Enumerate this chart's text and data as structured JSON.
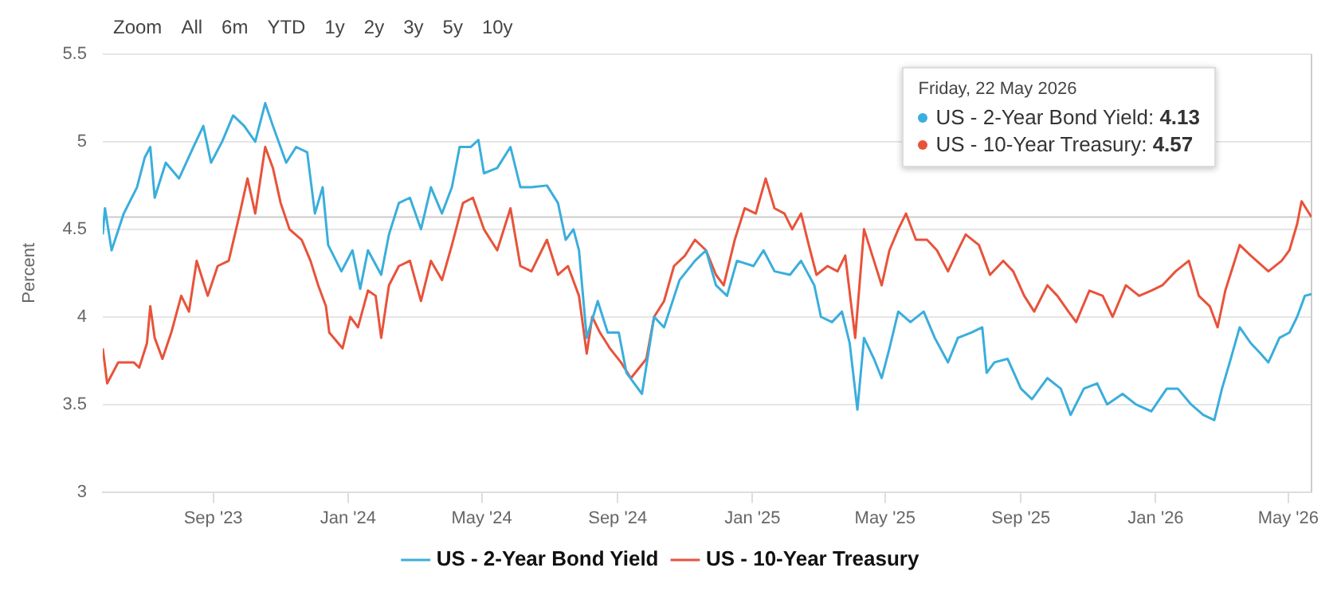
{
  "chart_data": {
    "type": "line",
    "ylabel": "Percent",
    "xlim": [
      "2023-05-24",
      "2026-05-22"
    ],
    "ylim": [
      3,
      5.5
    ],
    "yticks": [
      3,
      3.5,
      4,
      4.5,
      5,
      5.5
    ],
    "xticks": [
      {
        "value": "2023-09-01",
        "label": "Sep '23"
      },
      {
        "value": "2024-01-01",
        "label": "Jan '24"
      },
      {
        "value": "2024-05-01",
        "label": "May '24"
      },
      {
        "value": "2024-09-01",
        "label": "Sep '24"
      },
      {
        "value": "2025-01-01",
        "label": "Jan '25"
      },
      {
        "value": "2025-05-01",
        "label": "May '25"
      },
      {
        "value": "2025-09-01",
        "label": "Sep '25"
      },
      {
        "value": "2026-01-01",
        "label": "Jan '26"
      },
      {
        "value": "2026-05-01",
        "label": "May '26"
      }
    ],
    "grid": "y",
    "legend": "bottom",
    "marker": "none",
    "line_style": "solid",
    "series": [
      {
        "name": "US - 2-Year Bond Yield",
        "color": "#3aaedc",
        "x": [
          "2023-05-24",
          "2023-05-26",
          "2023-06-01",
          "2023-06-12",
          "2023-06-24",
          "2023-07-01",
          "2023-07-06",
          "2023-07-10",
          "2023-07-20",
          "2023-08-01",
          "2023-08-14",
          "2023-08-23",
          "2023-08-30",
          "2023-09-09",
          "2023-09-19",
          "2023-09-29",
          "2023-10-09",
          "2023-10-18",
          "2023-10-25",
          "2023-11-06",
          "2023-11-15",
          "2023-11-25",
          "2023-12-02",
          "2023-12-09",
          "2023-12-14",
          "2023-12-26",
          "2024-01-05",
          "2024-01-12",
          "2024-01-19",
          "2024-01-31",
          "2024-02-07",
          "2024-02-16",
          "2024-02-26",
          "2024-03-07",
          "2024-03-16",
          "2024-03-26",
          "2024-04-04",
          "2024-04-11",
          "2024-04-21",
          "2024-04-28",
          "2024-05-03",
          "2024-05-15",
          "2024-05-27",
          "2024-06-05",
          "2024-06-15",
          "2024-06-29",
          "2024-07-09",
          "2024-07-16",
          "2024-07-23",
          "2024-07-28",
          "2024-08-04",
          "2024-08-14",
          "2024-08-23",
          "2024-09-02",
          "2024-09-09",
          "2024-09-23",
          "2024-10-04",
          "2024-10-13",
          "2024-10-27",
          "2024-11-10",
          "2024-11-20",
          "2024-11-29",
          "2024-12-09",
          "2024-12-18",
          "2025-01-02",
          "2025-01-11",
          "2025-01-21",
          "2025-02-04",
          "2025-02-14",
          "2025-02-26",
          "2025-03-04",
          "2025-03-14",
          "2025-03-23",
          "2025-03-30",
          "2025-04-06",
          "2025-04-12",
          "2025-04-21",
          "2025-04-28",
          "2025-05-05",
          "2025-05-13",
          "2025-05-24",
          "2025-06-05",
          "2025-06-15",
          "2025-06-27",
          "2025-07-06",
          "2025-07-18",
          "2025-07-28",
          "2025-08-01",
          "2025-08-08",
          "2025-08-20",
          "2025-09-01",
          "2025-09-11",
          "2025-09-25",
          "2025-10-07",
          "2025-10-16",
          "2025-10-28",
          "2025-11-09",
          "2025-11-18",
          "2025-12-02",
          "2025-12-14",
          "2025-12-28",
          "2026-01-11",
          "2026-01-21",
          "2026-02-02",
          "2026-02-13",
          "2026-02-23",
          "2026-03-02",
          "2026-03-09",
          "2026-03-18",
          "2026-03-28",
          "2026-04-06",
          "2026-04-13",
          "2026-04-23",
          "2026-05-02",
          "2026-05-09",
          "2026-05-16",
          "2026-05-22"
        ],
        "values": [
          4.47,
          4.62,
          4.38,
          4.59,
          4.74,
          4.91,
          4.97,
          4.68,
          4.88,
          4.79,
          4.97,
          5.09,
          4.88,
          5.0,
          5.15,
          5.09,
          5.0,
          5.22,
          5.09,
          4.88,
          4.97,
          4.94,
          4.59,
          4.74,
          4.41,
          4.26,
          4.38,
          4.16,
          4.38,
          4.24,
          4.47,
          4.65,
          4.68,
          4.5,
          4.74,
          4.59,
          4.74,
          4.97,
          4.97,
          5.01,
          4.82,
          4.85,
          4.97,
          4.74,
          4.74,
          4.75,
          4.65,
          4.44,
          4.5,
          4.38,
          3.88,
          4.09,
          3.91,
          3.91,
          3.68,
          3.56,
          4.0,
          3.94,
          4.21,
          4.32,
          4.38,
          4.18,
          4.12,
          4.32,
          4.29,
          4.38,
          4.26,
          4.24,
          4.32,
          4.18,
          4.0,
          3.97,
          4.03,
          3.85,
          3.47,
          3.88,
          3.76,
          3.65,
          3.82,
          4.03,
          3.97,
          4.03,
          3.88,
          3.74,
          3.88,
          3.91,
          3.94,
          3.68,
          3.74,
          3.76,
          3.59,
          3.53,
          3.65,
          3.59,
          3.44,
          3.59,
          3.62,
          3.5,
          3.56,
          3.5,
          3.46,
          3.59,
          3.59,
          3.5,
          3.44,
          3.41,
          3.59,
          3.74,
          3.94,
          3.85,
          3.79,
          3.74,
          3.88,
          3.91,
          4.0,
          4.12,
          4.13
        ]
      },
      {
        "name": "US - 10-Year Treasury",
        "color": "#e8533a",
        "x": [
          "2023-05-24",
          "2023-05-28",
          "2023-06-07",
          "2023-06-21",
          "2023-06-26",
          "2023-07-03",
          "2023-07-06",
          "2023-07-10",
          "2023-07-17",
          "2023-07-25",
          "2023-08-03",
          "2023-08-10",
          "2023-08-17",
          "2023-08-27",
          "2023-09-05",
          "2023-09-15",
          "2023-09-25",
          "2023-10-02",
          "2023-10-09",
          "2023-10-18",
          "2023-10-25",
          "2023-11-01",
          "2023-11-09",
          "2023-11-20",
          "2023-11-28",
          "2023-12-05",
          "2023-12-12",
          "2023-12-15",
          "2023-12-27",
          "2024-01-03",
          "2024-01-10",
          "2024-01-19",
          "2024-01-26",
          "2024-01-31",
          "2024-02-07",
          "2024-02-16",
          "2024-02-26",
          "2024-03-07",
          "2024-03-16",
          "2024-03-26",
          "2024-04-04",
          "2024-04-14",
          "2024-04-23",
          "2024-05-03",
          "2024-05-15",
          "2024-05-27",
          "2024-06-05",
          "2024-06-15",
          "2024-06-29",
          "2024-07-09",
          "2024-07-18",
          "2024-07-28",
          "2024-08-04",
          "2024-08-09",
          "2024-08-16",
          "2024-08-25",
          "2024-09-04",
          "2024-09-13",
          "2024-09-27",
          "2024-10-04",
          "2024-10-13",
          "2024-10-22",
          "2024-11-01",
          "2024-11-10",
          "2024-11-20",
          "2024-11-29",
          "2024-12-06",
          "2024-12-16",
          "2024-12-25",
          "2025-01-04",
          "2025-01-13",
          "2025-01-21",
          "2025-01-30",
          "2025-02-06",
          "2025-02-14",
          "2025-02-21",
          "2025-02-28",
          "2025-03-10",
          "2025-03-19",
          "2025-03-26",
          "2025-04-04",
          "2025-04-12",
          "2025-04-21",
          "2025-04-28",
          "2025-05-05",
          "2025-05-13",
          "2025-05-20",
          "2025-05-29",
          "2025-06-08",
          "2025-06-17",
          "2025-06-27",
          "2025-07-06",
          "2025-07-13",
          "2025-07-25",
          "2025-08-04",
          "2025-08-16",
          "2025-08-25",
          "2025-09-04",
          "2025-09-13",
          "2025-09-25",
          "2025-10-04",
          "2025-10-14",
          "2025-10-21",
          "2025-11-02",
          "2025-11-14",
          "2025-11-23",
          "2025-12-05",
          "2025-12-17",
          "2025-12-28",
          "2026-01-07",
          "2026-01-19",
          "2026-01-31",
          "2026-02-09",
          "2026-02-19",
          "2026-02-26",
          "2026-03-05",
          "2026-03-12",
          "2026-03-18",
          "2026-03-28",
          "2026-04-13",
          "2026-04-25",
          "2026-05-02",
          "2026-05-09",
          "2026-05-13",
          "2026-05-22"
        ],
        "values": [
          3.82,
          3.62,
          3.74,
          3.74,
          3.71,
          3.85,
          4.06,
          3.88,
          3.76,
          3.91,
          4.12,
          4.03,
          4.32,
          4.12,
          4.29,
          4.32,
          4.59,
          4.79,
          4.59,
          4.97,
          4.85,
          4.65,
          4.5,
          4.44,
          4.32,
          4.18,
          4.06,
          3.91,
          3.82,
          4.0,
          3.94,
          4.15,
          4.12,
          3.88,
          4.18,
          4.29,
          4.32,
          4.09,
          4.32,
          4.21,
          4.41,
          4.65,
          4.68,
          4.5,
          4.38,
          4.62,
          4.29,
          4.26,
          4.44,
          4.24,
          4.29,
          4.12,
          3.79,
          4.0,
          3.91,
          3.82,
          3.74,
          3.65,
          3.76,
          4.0,
          4.09,
          4.29,
          4.35,
          4.44,
          4.38,
          4.24,
          4.18,
          4.44,
          4.62,
          4.59,
          4.79,
          4.62,
          4.59,
          4.5,
          4.59,
          4.41,
          4.24,
          4.29,
          4.26,
          4.35,
          3.88,
          4.5,
          4.32,
          4.18,
          4.38,
          4.5,
          4.59,
          4.44,
          4.44,
          4.38,
          4.26,
          4.38,
          4.47,
          4.41,
          4.24,
          4.32,
          4.26,
          4.12,
          4.03,
          4.18,
          4.12,
          4.03,
          3.97,
          4.15,
          4.12,
          4.0,
          4.18,
          4.12,
          4.15,
          4.18,
          4.26,
          4.32,
          4.12,
          4.06,
          3.94,
          4.15,
          4.29,
          4.41,
          4.35,
          4.26,
          4.32,
          4.38,
          4.53,
          4.66,
          4.57
        ]
      }
    ],
    "ref_lines": [
      {
        "axis": "y",
        "value": 4.57,
        "color": "#cccccc"
      },
      {
        "axis": "x",
        "value": "2026-05-22",
        "color": "#cccccc"
      }
    ],
    "annotations": [
      "Zoom",
      "All",
      "6m",
      "YTD",
      "1y",
      "2y",
      "3y",
      "5y",
      "10y",
      {
        "text": "Friday, 22 May 2026"
      },
      {
        "text": "US - 2-Year Bond Yield: 4.13"
      },
      {
        "text": "US - 10-Year Treasury: 4.57"
      }
    ]
  }
}
